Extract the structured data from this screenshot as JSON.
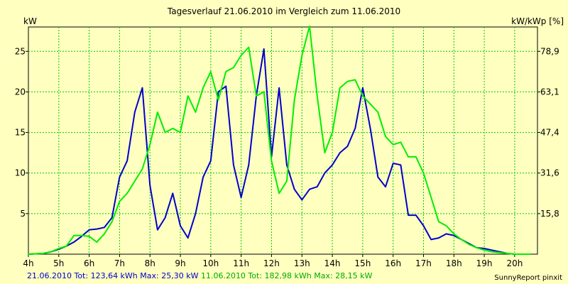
{
  "header": {
    "title": "Tagesverlauf 21.06.2010 im Vergleich zum 11.06.2010",
    "left_unit": "kW",
    "right_unit": "kW/kWp [%]"
  },
  "footer": {
    "series1_summary": "21.06.2010 Tot: 123,64 kWh Max: 25,30 kW",
    "series2_summary": "11.06.2010 Tot: 182,98 kWh Max: 28,15 kW",
    "credit": "SunnyReport pinxit"
  },
  "colors": {
    "background": "#FFFFC0",
    "grid": "#00CC00",
    "series1": "#0000CC",
    "series2": "#00EE00"
  },
  "chart_data": {
    "type": "line",
    "title": "Tagesverlauf 21.06.2010 im Vergleich zum 11.06.2010",
    "xlabel": "",
    "ylabel": "kW",
    "ylabel_right": "kW/kWp [%]",
    "x_ticks": [
      "4h",
      "5h",
      "6h",
      "7h",
      "8h",
      "9h",
      "10h",
      "11h",
      "12h",
      "13h",
      "14h",
      "15h",
      "16h",
      "17h",
      "18h",
      "19h",
      "20h"
    ],
    "x_tick_values": [
      4,
      5,
      6,
      7,
      8,
      9,
      10,
      11,
      12,
      13,
      14,
      15,
      16,
      17,
      18,
      19,
      20
    ],
    "xlim": [
      4,
      20.75
    ],
    "y_ticks": [
      "5",
      "10",
      "15",
      "20",
      "25"
    ],
    "y_tick_values": [
      5,
      10,
      15,
      20,
      25
    ],
    "ylim": [
      0,
      28
    ],
    "y_right_ticks": [
      "15,8",
      "31,6",
      "47,4",
      "63,1",
      "78,9"
    ],
    "grid": true,
    "series": [
      {
        "name": "21.06.2010",
        "color": "#0000CC",
        "points": [
          [
            4.0,
            0.0
          ],
          [
            4.5,
            0.1
          ],
          [
            4.75,
            0.3
          ],
          [
            5.0,
            0.6
          ],
          [
            5.25,
            1.0
          ],
          [
            5.5,
            1.5
          ],
          [
            5.75,
            2.2
          ],
          [
            6.0,
            3.0
          ],
          [
            6.25,
            3.1
          ],
          [
            6.5,
            3.3
          ],
          [
            6.75,
            4.5
          ],
          [
            7.0,
            9.5
          ],
          [
            7.25,
            11.5
          ],
          [
            7.5,
            17.5
          ],
          [
            7.75,
            20.5
          ],
          [
            8.0,
            8.5
          ],
          [
            8.25,
            3.0
          ],
          [
            8.5,
            4.5
          ],
          [
            8.75,
            7.5
          ],
          [
            9.0,
            3.5
          ],
          [
            9.25,
            2.0
          ],
          [
            9.5,
            5.0
          ],
          [
            9.75,
            9.5
          ],
          [
            10.0,
            11.5
          ],
          [
            10.25,
            20.0
          ],
          [
            10.5,
            20.7
          ],
          [
            10.75,
            11.0
          ],
          [
            11.0,
            7.0
          ],
          [
            11.25,
            11.0
          ],
          [
            11.5,
            19.5
          ],
          [
            11.75,
            25.3
          ],
          [
            12.0,
            12.0
          ],
          [
            12.25,
            20.5
          ],
          [
            12.5,
            11.0
          ],
          [
            12.75,
            8.0
          ],
          [
            13.0,
            6.7
          ],
          [
            13.25,
            8.0
          ],
          [
            13.5,
            8.3
          ],
          [
            13.75,
            10.0
          ],
          [
            14.0,
            11.0
          ],
          [
            14.25,
            12.5
          ],
          [
            14.5,
            13.3
          ],
          [
            14.75,
            15.5
          ],
          [
            15.0,
            20.5
          ],
          [
            15.25,
            15.5
          ],
          [
            15.5,
            9.5
          ],
          [
            15.75,
            8.3
          ],
          [
            16.0,
            11.2
          ],
          [
            16.25,
            11.0
          ],
          [
            16.5,
            4.8
          ],
          [
            16.75,
            4.8
          ],
          [
            17.0,
            3.5
          ],
          [
            17.25,
            1.8
          ],
          [
            17.5,
            2.0
          ],
          [
            17.75,
            2.5
          ],
          [
            18.0,
            2.3
          ],
          [
            18.25,
            1.8
          ],
          [
            18.5,
            1.3
          ],
          [
            18.75,
            0.8
          ],
          [
            19.0,
            0.7
          ],
          [
            19.25,
            0.5
          ],
          [
            19.5,
            0.3
          ],
          [
            19.75,
            0.1
          ],
          [
            20.0,
            0.0
          ],
          [
            20.5,
            0.0
          ]
        ]
      },
      {
        "name": "11.06.2010",
        "color": "#00EE00",
        "points": [
          [
            4.0,
            0.0
          ],
          [
            4.5,
            0.1
          ],
          [
            4.75,
            0.3
          ],
          [
            5.0,
            0.7
          ],
          [
            5.25,
            1.0
          ],
          [
            5.5,
            2.3
          ],
          [
            5.75,
            2.3
          ],
          [
            6.0,
            2.2
          ],
          [
            6.25,
            1.5
          ],
          [
            6.5,
            2.5
          ],
          [
            6.75,
            4.0
          ],
          [
            7.0,
            6.5
          ],
          [
            7.25,
            7.5
          ],
          [
            7.5,
            9.0
          ],
          [
            7.75,
            10.5
          ],
          [
            8.0,
            13.5
          ],
          [
            8.25,
            17.5
          ],
          [
            8.5,
            15.0
          ],
          [
            8.75,
            15.5
          ],
          [
            9.0,
            15.0
          ],
          [
            9.25,
            19.5
          ],
          [
            9.5,
            17.5
          ],
          [
            9.75,
            20.5
          ],
          [
            10.0,
            22.5
          ],
          [
            10.25,
            19.0
          ],
          [
            10.5,
            22.5
          ],
          [
            10.75,
            23.0
          ],
          [
            11.0,
            24.5
          ],
          [
            11.25,
            25.5
          ],
          [
            11.5,
            19.5
          ],
          [
            11.75,
            20.0
          ],
          [
            12.0,
            11.5
          ],
          [
            12.25,
            7.5
          ],
          [
            12.5,
            9.0
          ],
          [
            12.75,
            19.0
          ],
          [
            13.0,
            24.5
          ],
          [
            13.25,
            28.1
          ],
          [
            13.5,
            19.5
          ],
          [
            13.75,
            12.5
          ],
          [
            14.0,
            15.0
          ],
          [
            14.25,
            20.5
          ],
          [
            14.5,
            21.3
          ],
          [
            14.75,
            21.5
          ],
          [
            15.0,
            19.5
          ],
          [
            15.25,
            18.5
          ],
          [
            15.5,
            17.5
          ],
          [
            15.75,
            14.5
          ],
          [
            16.0,
            13.5
          ],
          [
            16.25,
            13.8
          ],
          [
            16.5,
            12.0
          ],
          [
            16.75,
            12.0
          ],
          [
            17.0,
            10.0
          ],
          [
            17.25,
            7.0
          ],
          [
            17.5,
            4.0
          ],
          [
            17.75,
            3.5
          ],
          [
            18.0,
            2.5
          ],
          [
            18.25,
            1.8
          ],
          [
            18.5,
            1.2
          ],
          [
            18.75,
            0.8
          ],
          [
            19.0,
            0.5
          ],
          [
            19.25,
            0.3
          ],
          [
            19.5,
            0.2
          ],
          [
            19.75,
            0.1
          ],
          [
            20.0,
            0.0
          ],
          [
            20.5,
            0.0
          ]
        ]
      }
    ]
  }
}
